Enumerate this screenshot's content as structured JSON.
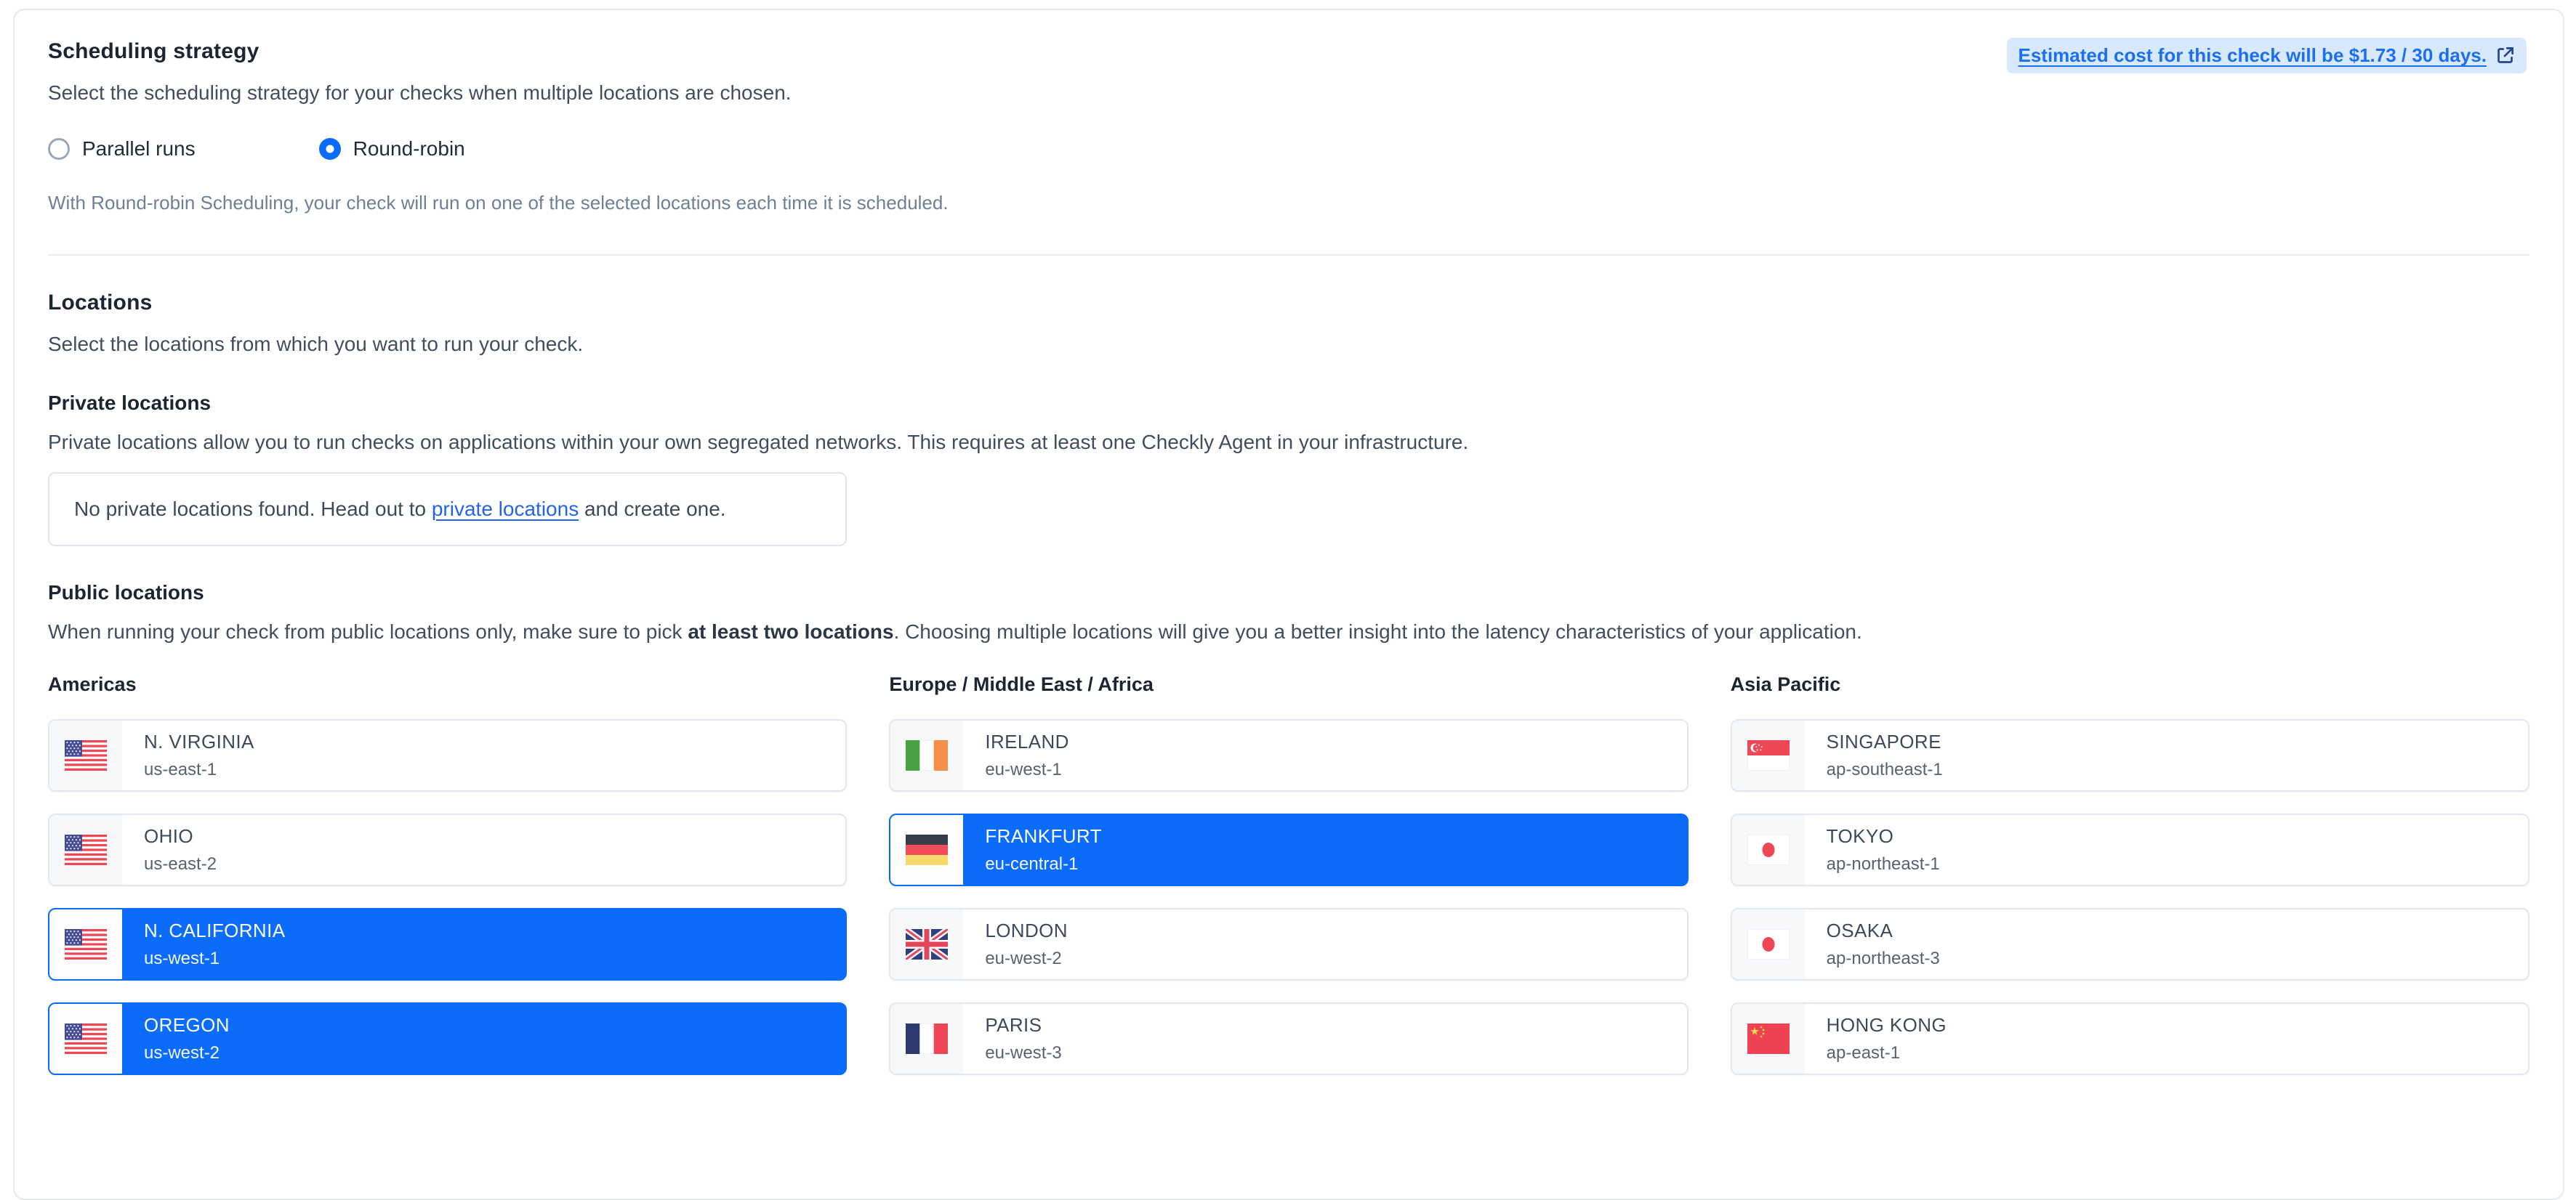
{
  "scheduling": {
    "title": "Scheduling strategy",
    "description": "Select the scheduling strategy for your checks when multiple locations are chosen.",
    "options": [
      {
        "label": "Parallel runs",
        "selected": false
      },
      {
        "label": "Round-robin",
        "selected": true
      }
    ],
    "helper": "With Round-robin Scheduling, your check will run on one of the selected locations each time it is scheduled.",
    "cost_link": {
      "text": "Estimated cost for this check will be $1.73 / 30 days.",
      "icon": "external-link-icon"
    }
  },
  "locations": {
    "title": "Locations",
    "description": "Select the locations from which you want to run your check.",
    "private": {
      "title": "Private locations",
      "description": "Private locations allow you to run checks on applications within your own segregated networks. This requires at least one Checkly Agent in your infrastructure.",
      "empty_before": "No private locations found. Head out to ",
      "empty_link": "private locations",
      "empty_after": " and create one."
    },
    "public": {
      "title": "Public locations",
      "description_before": "When running your check from public locations only, make sure to pick ",
      "description_bold": "at least two locations",
      "description_after": ". Choosing multiple locations will give you a better insight into the latency characteristics of your application.",
      "columns": [
        {
          "header": "Americas",
          "items": [
            {
              "name": "N. VIRGINIA",
              "region": "us-east-1",
              "flag": "us-flag",
              "selected": false
            },
            {
              "name": "OHIO",
              "region": "us-east-2",
              "flag": "us-flag",
              "selected": false
            },
            {
              "name": "N. CALIFORNIA",
              "region": "us-west-1",
              "flag": "us-flag",
              "selected": true
            },
            {
              "name": "OREGON",
              "region": "us-west-2",
              "flag": "us-flag",
              "selected": true
            }
          ]
        },
        {
          "header": "Europe / Middle East / Africa",
          "items": [
            {
              "name": "IRELAND",
              "region": "eu-west-1",
              "flag": "ireland-flag",
              "selected": false
            },
            {
              "name": "FRANKFURT",
              "region": "eu-central-1",
              "flag": "germany-flag",
              "selected": true
            },
            {
              "name": "LONDON",
              "region": "eu-west-2",
              "flag": "uk-flag",
              "selected": false
            },
            {
              "name": "PARIS",
              "region": "eu-west-3",
              "flag": "france-flag",
              "selected": false
            }
          ]
        },
        {
          "header": "Asia Pacific",
          "items": [
            {
              "name": "SINGAPORE",
              "region": "ap-southeast-1",
              "flag": "singapore-flag",
              "selected": false
            },
            {
              "name": "TOKYO",
              "region": "ap-northeast-1",
              "flag": "japan-flag",
              "selected": false
            },
            {
              "name": "OSAKA",
              "region": "ap-northeast-3",
              "flag": "japan-flag",
              "selected": false
            },
            {
              "name": "HONG KONG",
              "region": "ap-east-1",
              "flag": "china-flag",
              "selected": false
            }
          ]
        }
      ]
    }
  },
  "colors": {
    "accent_blue": "#0b6cfb",
    "link_blue": "#2563eb",
    "cost_pill_bg": "#d9e9fd",
    "cost_pill_text": "#1b6ff2"
  }
}
